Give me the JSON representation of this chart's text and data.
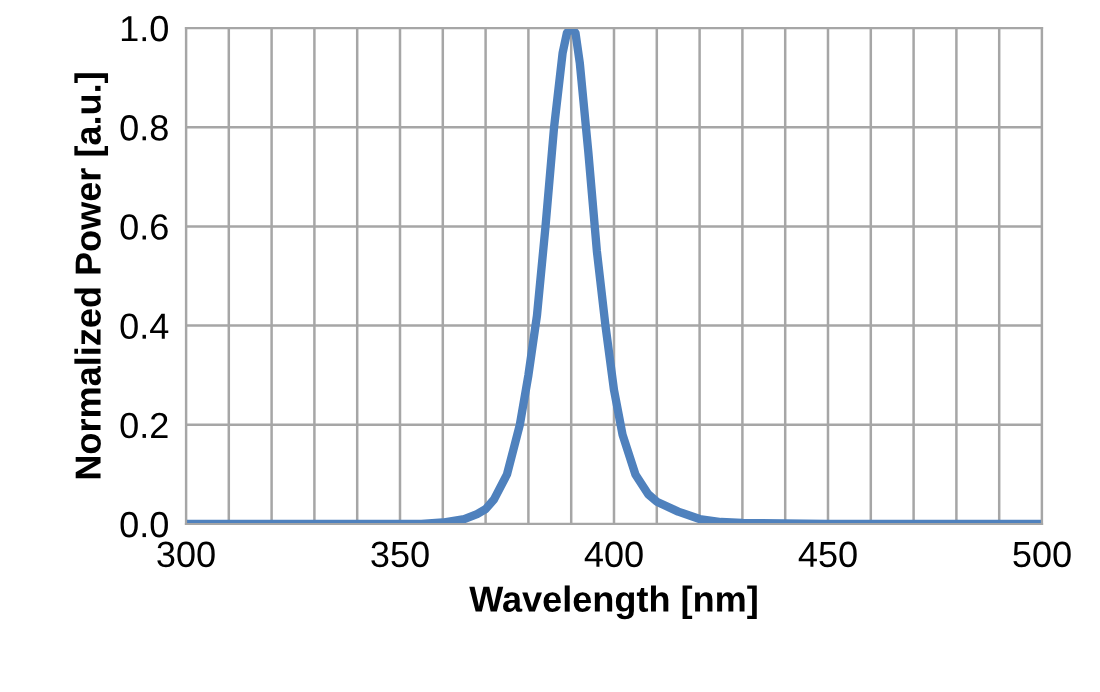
{
  "chart_data": {
    "type": "line",
    "xlabel": "Wavelength [nm]",
    "ylabel": "Normalized Power [a.u.]",
    "series": [
      {
        "color": "#4f81bd",
        "x": [
          300,
          320,
          340,
          355,
          360,
          365,
          368,
          370,
          372,
          375,
          378,
          380,
          382,
          384,
          386,
          388,
          389,
          390,
          391,
          392,
          394,
          396,
          398,
          400,
          402,
          405,
          408,
          410,
          415,
          420,
          425,
          430,
          450,
          475,
          500
        ],
        "values": [
          0,
          0,
          0,
          0,
          0.003,
          0.01,
          0.02,
          0.03,
          0.05,
          0.1,
          0.2,
          0.3,
          0.42,
          0.6,
          0.8,
          0.95,
          0.99,
          1.0,
          0.99,
          0.93,
          0.75,
          0.55,
          0.4,
          0.27,
          0.18,
          0.1,
          0.06,
          0.045,
          0.025,
          0.01,
          0.004,
          0.002,
          0,
          0,
          0
        ]
      }
    ],
    "xlim": [
      300,
      500
    ],
    "xticks": [
      300,
      {
        "value": 310,
        "label": null
      },
      {
        "value": 320,
        "label": null
      },
      {
        "value": 330,
        "label": null
      },
      {
        "value": 340,
        "label": null
      },
      350,
      {
        "value": 360,
        "label": null
      },
      {
        "value": 370,
        "label": null
      },
      {
        "value": 380,
        "label": null
      },
      {
        "value": 390,
        "label": null
      },
      400,
      {
        "value": 410,
        "label": null
      },
      {
        "value": 420,
        "label": null
      },
      {
        "value": 430,
        "label": null
      },
      {
        "value": 440,
        "label": null
      },
      450,
      {
        "value": 460,
        "label": null
      },
      {
        "value": 470,
        "label": null
      },
      {
        "value": 480,
        "label": null
      },
      {
        "value": 490,
        "label": null
      },
      500
    ],
    "ylim": [
      0,
      1.0
    ],
    "yticks": [
      {
        "value": 0,
        "label": "0.0"
      },
      {
        "value": 0.2,
        "label": "0.2"
      },
      {
        "value": 0.4,
        "label": "0.4"
      },
      {
        "value": 0.6,
        "label": "0.6"
      },
      {
        "value": 0.8,
        "label": "0.8"
      },
      {
        "value": 1.0,
        "label": "1.0"
      }
    ],
    "grid": true,
    "marker": "none",
    "line_style": "solid",
    "legend": false
  }
}
